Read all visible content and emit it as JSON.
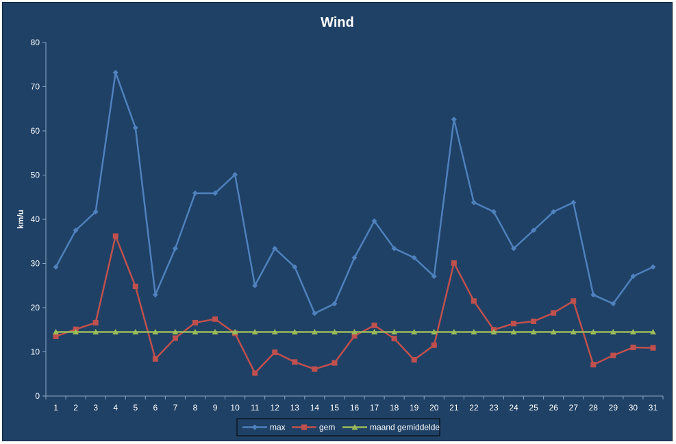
{
  "chart_data": {
    "type": "line",
    "title": "Wind",
    "xlabel": "",
    "ylabel": "km/u",
    "ylim": [
      0,
      80
    ],
    "yticks": [
      0,
      10,
      20,
      30,
      40,
      50,
      60,
      70,
      80
    ],
    "categories": [
      "1",
      "2",
      "3",
      "4",
      "5",
      "6",
      "7",
      "8",
      "9",
      "10",
      "11",
      "12",
      "13",
      "14",
      "15",
      "16",
      "17",
      "18",
      "19",
      "20",
      "21",
      "22",
      "23",
      "24",
      "25",
      "26",
      "27",
      "28",
      "29",
      "30",
      "31"
    ],
    "grid": false,
    "legend_position": "bottom",
    "series": [
      {
        "name": "max",
        "color": "#4f81bd",
        "marker": "diamond",
        "values": [
          29.2,
          37.5,
          41.7,
          73.2,
          60.7,
          22.9,
          33.4,
          45.9,
          45.9,
          50.1,
          25.0,
          33.4,
          29.2,
          18.7,
          20.9,
          31.3,
          39.6,
          33.4,
          31.3,
          27.1,
          62.6,
          43.8,
          41.7,
          33.4,
          37.5,
          41.7,
          43.8,
          22.9,
          20.9,
          27.1,
          29.2
        ]
      },
      {
        "name": "gem",
        "color": "#c0504d",
        "marker": "square",
        "values": [
          13.5,
          15.1,
          16.6,
          36.2,
          24.8,
          8.4,
          13.1,
          16.6,
          17.4,
          14.2,
          5.2,
          9.9,
          7.7,
          6.1,
          7.5,
          13.6,
          16.0,
          13.0,
          8.2,
          11.5,
          30.1,
          21.5,
          15.0,
          16.4,
          16.9,
          18.8,
          21.5,
          7.1,
          9.2,
          11.0,
          10.9
        ]
      },
      {
        "name": "maand gemiddelde",
        "color": "#9bbb59",
        "marker": "triangle",
        "values": [
          14.5,
          14.5,
          14.5,
          14.5,
          14.5,
          14.5,
          14.5,
          14.5,
          14.5,
          14.5,
          14.5,
          14.5,
          14.5,
          14.5,
          14.5,
          14.5,
          14.5,
          14.5,
          14.5,
          14.5,
          14.5,
          14.5,
          14.5,
          14.5,
          14.5,
          14.5,
          14.5,
          14.5,
          14.5,
          14.5,
          14.5
        ]
      }
    ]
  }
}
